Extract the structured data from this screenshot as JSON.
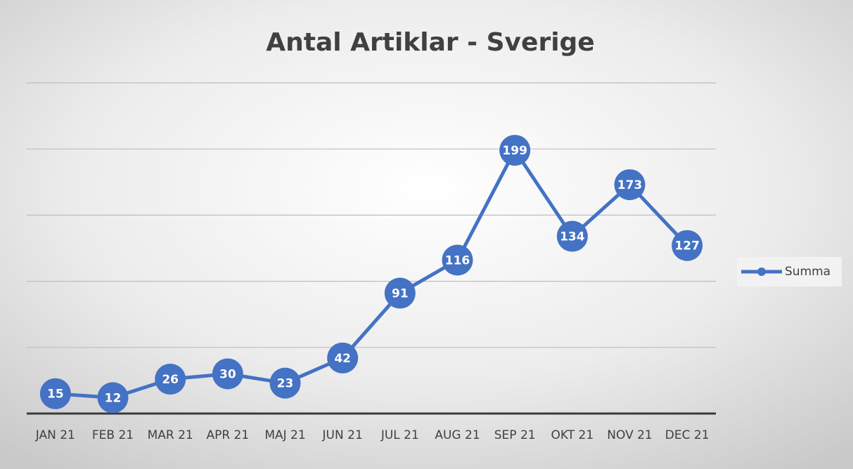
{
  "chart_data": {
    "type": "line",
    "title": "Antal Artiklar - Sverige",
    "categories": [
      "JAN 21",
      "FEB 21",
      "MAR 21",
      "APR 21",
      "MAJ 21",
      "JUN 21",
      "JUL 21",
      "AUG 21",
      "SEP 21",
      "OKT 21",
      "NOV 21",
      "DEC 21"
    ],
    "series": [
      {
        "name": "Summa",
        "color": "#4472c4",
        "values": [
          15,
          12,
          26,
          30,
          23,
          42,
          91,
          116,
          199,
          134,
          173,
          127
        ]
      }
    ],
    "ylim": [
      0,
      250
    ],
    "yticks": [
      0,
      50,
      100,
      150,
      200,
      250
    ],
    "grid": true,
    "legend": "right"
  }
}
